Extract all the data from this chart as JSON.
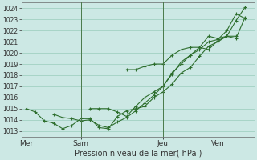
{
  "title": "Pression niveau de la mer( hPa )",
  "bg_color": "#cce8e4",
  "line_color": "#2d6e2d",
  "grid_color": "#99ccbb",
  "ylim": [
    1012.5,
    1024.5
  ],
  "yticks": [
    1013,
    1014,
    1015,
    1016,
    1017,
    1018,
    1019,
    1020,
    1021,
    1022,
    1023,
    1024
  ],
  "vline_positions": [
    0,
    12,
    30,
    42
  ],
  "day_positions": [
    0,
    12,
    30,
    42
  ],
  "xticklabels": [
    "Mer",
    "Sam",
    "Jeu",
    "Ven"
  ],
  "lines": [
    {
      "x": [
        0,
        2,
        4,
        6,
        8,
        10,
        12,
        14,
        16,
        18,
        20,
        22,
        24,
        26,
        28,
        30,
        32,
        34,
        36,
        38,
        40,
        42,
        44,
        46,
        48
      ],
      "y": [
        1015.0,
        1014.7,
        1013.9,
        1013.7,
        1013.2,
        1013.5,
        1014.1,
        1014.1,
        1013.3,
        1013.2,
        1014.3,
        1014.8,
        1015.0,
        1015.2,
        1016.0,
        1016.5,
        1017.2,
        1018.2,
        1018.7,
        1019.7,
        1020.6,
        1021.0,
        1021.5,
        1022.9,
        1024.1
      ]
    },
    {
      "x": [
        6,
        8,
        10,
        12,
        14,
        16,
        18,
        20,
        22,
        24,
        26,
        28,
        30,
        32,
        34,
        36,
        38,
        40,
        42,
        44,
        46,
        48
      ],
      "y": [
        1014.5,
        1014.2,
        1014.1,
        1013.9,
        1014.0,
        1013.5,
        1013.3,
        1013.8,
        1014.2,
        1014.8,
        1015.5,
        1016.2,
        1017.0,
        1018.2,
        1019.0,
        1019.8,
        1020.5,
        1020.3,
        1021.1,
        1021.5,
        1021.3,
        1023.2
      ]
    },
    {
      "x": [
        14,
        16,
        18,
        20,
        22,
        24,
        26,
        28,
        30,
        32,
        34,
        36,
        38,
        40,
        42,
        44,
        46,
        48
      ],
      "y": [
        1015.0,
        1015.0,
        1015.0,
        1014.7,
        1014.3,
        1015.2,
        1016.0,
        1016.5,
        1017.0,
        1018.1,
        1019.2,
        1019.8,
        1020.3,
        1021.0,
        1021.2,
        1022.0,
        1023.5,
        1023.1
      ]
    },
    {
      "x": [
        22,
        24,
        26,
        28,
        30,
        32,
        34,
        36,
        38,
        40,
        42,
        44,
        46
      ],
      "y": [
        1018.5,
        1018.5,
        1018.8,
        1019.0,
        1019.0,
        1019.8,
        1020.3,
        1020.5,
        1020.5,
        1021.5,
        1021.3,
        1021.5,
        1021.5
      ]
    }
  ],
  "xlim": [
    -1,
    50
  ],
  "figsize": [
    3.2,
    2.0
  ],
  "dpi": 100
}
